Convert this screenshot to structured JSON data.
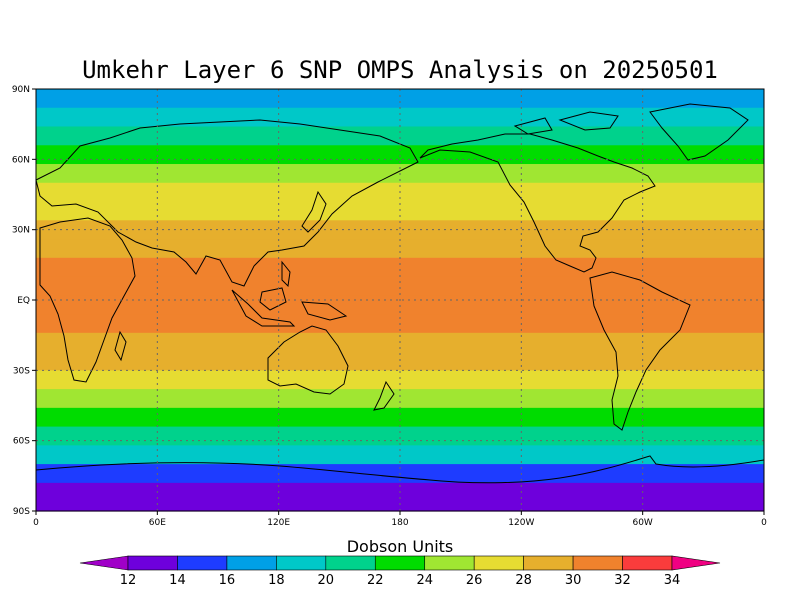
{
  "title": "Umkehr Layer 6 SNP OMPS Analysis on 20250501",
  "colorbar": {
    "title": "Dobson Units",
    "ticks": [
      "12",
      "14",
      "16",
      "18",
      "20",
      "22",
      "24",
      "26",
      "28",
      "30",
      "32",
      "34"
    ],
    "colors": [
      "#a000c8",
      "#6e00dc",
      "#1e3cff",
      "#00a0e6",
      "#00c8c8",
      "#00d28c",
      "#00dc00",
      "#a0e632",
      "#e6dc32",
      "#e6af2d",
      "#f0822d",
      "#fa3c3c",
      "#f00082"
    ]
  },
  "chart_data": {
    "type": "heatmap",
    "title": "Umkehr Layer 6 SNP OMPS Analysis on 20250501",
    "colorbar_label": "Dobson Units",
    "x_ticks": [
      "0",
      "60E",
      "120E",
      "180",
      "120W",
      "60W",
      "0"
    ],
    "y_ticks": [
      "90N",
      "60N",
      "30N",
      "EQ",
      "30S",
      "60S",
      "90S"
    ],
    "xlim": [
      0,
      360
    ],
    "ylim": [
      -90,
      90
    ],
    "grid": true,
    "levels": [
      12,
      14,
      16,
      18,
      20,
      22,
      24,
      26,
      28,
      30,
      32,
      34
    ],
    "zonal_profile": [
      {
        "lat": 90,
        "value": 17.2
      },
      {
        "lat": 82,
        "value": 18.6
      },
      {
        "lat": 74,
        "value": 20.4
      },
      {
        "lat": 66,
        "value": 22.4
      },
      {
        "lat": 58,
        "value": 24.6
      },
      {
        "lat": 50,
        "value": 26.5
      },
      {
        "lat": 42,
        "value": 27.6
      },
      {
        "lat": 34,
        "value": 28.6
      },
      {
        "lat": 26,
        "value": 29.6
      },
      {
        "lat": 18,
        "value": 30.3
      },
      {
        "lat": 10,
        "value": 30.4
      },
      {
        "lat": 2,
        "value": 30.4
      },
      {
        "lat": -6,
        "value": 30.2
      },
      {
        "lat": -14,
        "value": 29.6
      },
      {
        "lat": -22,
        "value": 28.6
      },
      {
        "lat": -30,
        "value": 27.4
      },
      {
        "lat": -38,
        "value": 25.4
      },
      {
        "lat": -46,
        "value": 23.3
      },
      {
        "lat": -54,
        "value": 21.4
      },
      {
        "lat": -62,
        "value": 18.9
      },
      {
        "lat": -70,
        "value": 15.8
      },
      {
        "lat": -78,
        "value": 13.8
      },
      {
        "lat": -86,
        "value": 13.0
      },
      {
        "lat": -90,
        "value": 12.8
      }
    ]
  }
}
